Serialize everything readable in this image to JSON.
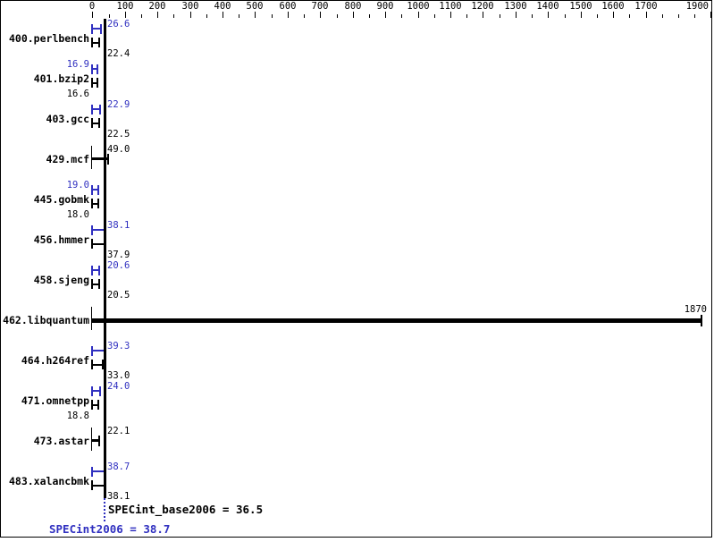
{
  "chart_data": {
    "type": "bar",
    "orientation": "horizontal",
    "title": "",
    "x_axis": {
      "min": 0,
      "max": 1900,
      "major_tick": 100,
      "minor_tick": 50,
      "labeled_ticks": [
        0,
        100,
        200,
        300,
        400,
        500,
        600,
        700,
        800,
        900,
        1000,
        1100,
        1200,
        1300,
        1400,
        1500,
        1600,
        1700,
        1900
      ],
      "unlabeled_major_ticks": [
        1800
      ]
    },
    "benchmarks": [
      {
        "name": "400.perlbench",
        "peak": 26.6,
        "base": 22.4,
        "peak_text": "26.6",
        "base_text": "22.4",
        "peak_side": "right",
        "base_side": "right",
        "style": "pair"
      },
      {
        "name": "401.bzip2",
        "peak": 16.9,
        "base": 16.6,
        "peak_text": "16.9",
        "base_text": "16.6",
        "peak_side": "left",
        "base_side": "left",
        "style": "pair"
      },
      {
        "name": "403.gcc",
        "peak": 22.9,
        "base": 22.5,
        "peak_text": "22.9",
        "base_text": "22.5",
        "peak_side": "right",
        "base_side": "right",
        "style": "pair"
      },
      {
        "name": "429.mcf",
        "single": 49.0,
        "single_text": "49.0",
        "style": "single"
      },
      {
        "name": "445.gobmk",
        "peak": 19.0,
        "base": 18.0,
        "peak_text": "19.0",
        "base_text": "18.0",
        "peak_side": "left",
        "base_side": "left",
        "style": "pair"
      },
      {
        "name": "456.hmmer",
        "peak": 38.1,
        "base": 37.9,
        "peak_text": "38.1",
        "base_text": "37.9",
        "peak_side": "right",
        "base_side": "right",
        "style": "pair"
      },
      {
        "name": "458.sjeng",
        "peak": 20.6,
        "base": 20.5,
        "peak_text": "20.6",
        "base_text": "20.5",
        "peak_side": "right",
        "base_side": "right",
        "style": "pair"
      },
      {
        "name": "462.libquantum",
        "single": 1870,
        "single_text": "1870",
        "style": "single-thick",
        "label_at_end": true
      },
      {
        "name": "464.h264ref",
        "peak": 39.3,
        "base": 33.0,
        "peak_text": "39.3",
        "base_text": "33.0",
        "peak_side": "right",
        "base_side": "right",
        "style": "pair"
      },
      {
        "name": "471.omnetpp",
        "peak": 24.0,
        "base": 18.8,
        "peak_text": "24.0",
        "base_text": "18.8",
        "peak_side": "right",
        "base_side": "left",
        "style": "pair"
      },
      {
        "name": "473.astar",
        "single": 22.1,
        "single_text": "22.1",
        "style": "single"
      },
      {
        "name": "483.xalancbmk",
        "peak": 38.7,
        "base": 38.1,
        "peak_text": "38.7",
        "base_text": "38.1",
        "peak_side": "right",
        "base_side": "right",
        "style": "pair"
      }
    ],
    "summary": {
      "base_text": "SPECint_base2006 = 36.5",
      "base_value": 36.5,
      "peak_text": "SPECint2006 = 38.7",
      "peak_value": 38.7
    },
    "colors": {
      "peak_blue": "#3030c0",
      "base_black": "#000000",
      "background": "#ffffff"
    },
    "legend": {
      "peak_series": "peak (blue)",
      "base_series": "base (black)"
    }
  }
}
